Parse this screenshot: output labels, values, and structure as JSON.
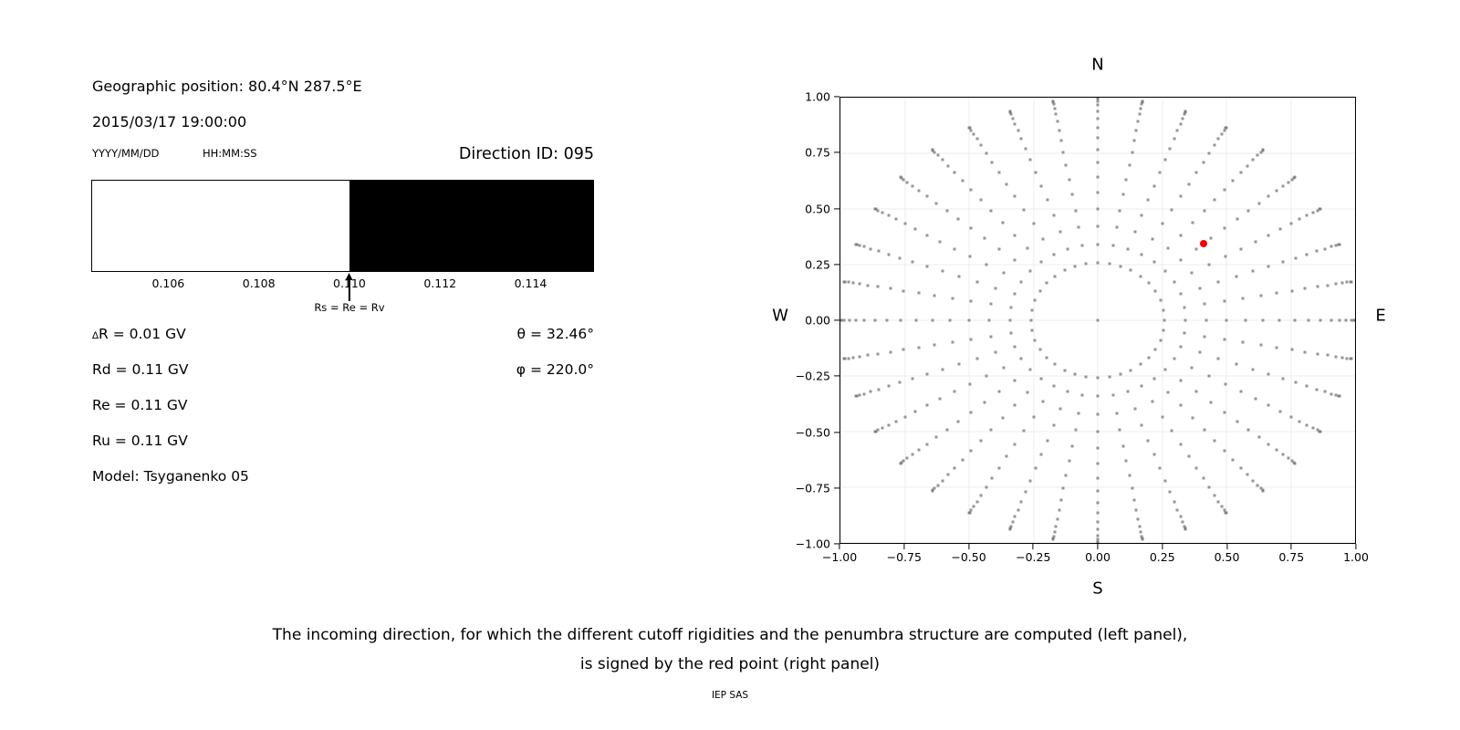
{
  "left_panel": {
    "geographic_position": "Geographic position: 80.4°N 287.5°E",
    "datetime": "2015/03/17 19:00:00",
    "date_format_label": "YYYY/MM/DD",
    "time_format_label": "HH:MM:SS",
    "direction_id": "Direction ID: 095",
    "rigidity_lines": [
      "∆R = 0.01 GV",
      "Rd = 0.11 GV",
      "Re = 0.11 GV",
      "Ru = 0.11 GV"
    ],
    "model_line": "Model: Tsyganenko 05",
    "theta_line": "θ = 32.46°",
    "phi_line": "φ = 220.0°"
  },
  "caption": {
    "line1": "The incoming direction, for which the different cutoff rigidities and the penumbra structure are computed (left panel),",
    "line2": "is signed by the red point (right panel)",
    "credit": "IEP SAS"
  },
  "chart_data": [
    {
      "type": "bar",
      "title": "penumbra structure (rigidity bands, GV)",
      "xlim": [
        0.1043,
        0.1154
      ],
      "xtick_values": [
        0.106,
        0.108,
        0.11,
        0.112,
        0.114
      ],
      "xtick_labels": [
        "0.106",
        "0.108",
        "0.110",
        "0.112",
        "0.114"
      ],
      "regions": [
        {
          "from": 0.1043,
          "to": 0.11,
          "color": "#ffffff"
        },
        {
          "from": 0.11,
          "to": 0.1154,
          "color": "#000000"
        }
      ],
      "marker": {
        "x": 0.11,
        "label": "Rs = Re = Rv"
      }
    },
    {
      "type": "scatter",
      "title": "incoming directions map",
      "xlim": [
        -1,
        1
      ],
      "ylim": [
        -1,
        1
      ],
      "grid": true,
      "grid_color": "#ececec",
      "xtick_values": [
        -1,
        -0.75,
        -0.5,
        -0.25,
        0,
        0.25,
        0.5,
        0.75,
        1
      ],
      "xtick_labels": [
        "−1.00",
        "−0.75",
        "−0.50",
        "−0.25",
        "0.00",
        "0.25",
        "0.50",
        "0.75",
        "1.00"
      ],
      "ytick_values": [
        1,
        0.75,
        0.5,
        0.25,
        0,
        -0.25,
        -0.5,
        -0.75,
        -1
      ],
      "ytick_labels": [
        "1.00",
        "0.75",
        "0.50",
        "0.25",
        "0.00",
        "−0.25",
        "−0.50",
        "−0.75",
        "−1.00"
      ],
      "compass": {
        "top": "N",
        "bottom": "S",
        "left": "W",
        "right": "E"
      },
      "directions_grid": {
        "azimuth_deg": {
          "start": 0,
          "stop": 350,
          "step": 10
        },
        "zenith_deg": {
          "start": 15,
          "stop": 90,
          "step": 5
        },
        "origin_point": true,
        "projection": "x = sin(zenith)*sin(azimuth); y = sin(zenith)*cos(azimuth)",
        "color": "#707070"
      },
      "highlight_point": {
        "x": 0.411,
        "y": 0.345,
        "zenith_deg": 32.46,
        "azimuth_from_N_deg": 50,
        "color": "#ff0000"
      }
    }
  ]
}
